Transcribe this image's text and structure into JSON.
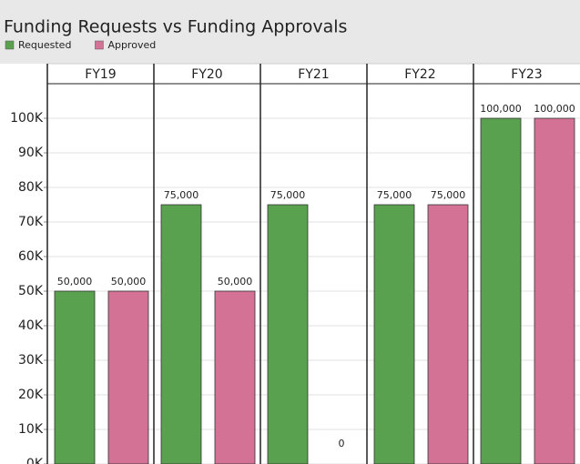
{
  "chart_data": {
    "type": "bar",
    "title": "Funding Requests vs Funding Approvals",
    "categories": [
      "FY19",
      "FY20",
      "FY21",
      "FY22",
      "FY23"
    ],
    "series": [
      {
        "name": "Requested",
        "color": "#59a14f",
        "values": [
          50000,
          75000,
          75000,
          75000,
          100000
        ],
        "value_labels": [
          "50,000",
          "75,000",
          "75,000",
          "75,000",
          "100,000"
        ]
      },
      {
        "name": "Approved",
        "color": "#d37295",
        "values": [
          50000,
          50000,
          0,
          75000,
          100000
        ],
        "value_labels": [
          "50,000",
          "50,000",
          "0",
          "75,000",
          "100,000"
        ]
      }
    ],
    "ylim": [
      0,
      110000
    ],
    "yticks": [
      {
        "value": 0,
        "label": "0K"
      },
      {
        "value": 10000,
        "label": "10K"
      },
      {
        "value": 20000,
        "label": "20K"
      },
      {
        "value": 30000,
        "label": "30K"
      },
      {
        "value": 40000,
        "label": "40K"
      },
      {
        "value": 50000,
        "label": "50K"
      },
      {
        "value": 60000,
        "label": "60K"
      },
      {
        "value": 70000,
        "label": "70K"
      },
      {
        "value": 80000,
        "label": "80K"
      },
      {
        "value": 90000,
        "label": "90K"
      },
      {
        "value": 100000,
        "label": "100K"
      }
    ],
    "grid": true
  }
}
